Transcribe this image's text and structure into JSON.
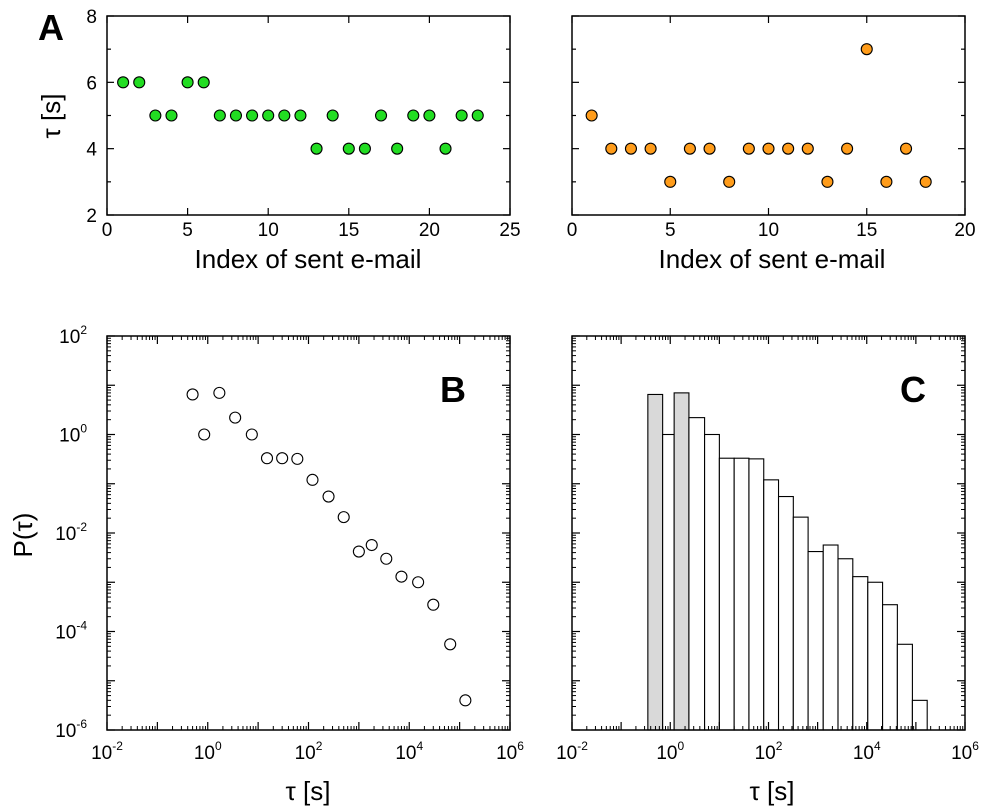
{
  "chart_data": [
    {
      "id": "top-left",
      "type": "scatter",
      "panel_label": "A",
      "xlabel": "Index of sent e-mail",
      "ylabel": "τ [s]",
      "xlim": [
        0,
        25
      ],
      "ylim": [
        2,
        8
      ],
      "xticks": [
        0,
        5,
        10,
        15,
        20,
        25
      ],
      "yticks": [
        2,
        4,
        6,
        8
      ],
      "marker_color": "#22dd22",
      "x": [
        1,
        2,
        3,
        4,
        5,
        6,
        7,
        8,
        9,
        10,
        11,
        12,
        13,
        14,
        15,
        16,
        17,
        18,
        19,
        20,
        21,
        22,
        23
      ],
      "y": [
        6,
        6,
        5,
        5,
        6,
        6,
        5,
        5,
        5,
        5,
        5,
        5,
        4,
        5,
        4,
        4,
        5,
        4,
        5,
        5,
        4,
        5,
        5
      ]
    },
    {
      "id": "top-right",
      "type": "scatter",
      "panel_label": "",
      "xlabel": "Index of sent e-mail",
      "ylabel": "",
      "xlim": [
        0,
        20
      ],
      "ylim": [
        2,
        8
      ],
      "xticks": [
        0,
        5,
        10,
        15,
        20
      ],
      "yticks": [],
      "marker_color": "#ff9c1a",
      "x": [
        1,
        2,
        3,
        4,
        5,
        6,
        7,
        8,
        9,
        10,
        11,
        12,
        13,
        14,
        15,
        16,
        17,
        18
      ],
      "y": [
        5,
        4,
        4,
        4,
        3,
        4,
        4,
        3,
        4,
        4,
        4,
        4,
        3,
        4,
        7,
        3,
        4,
        3
      ]
    },
    {
      "id": "bottom-left",
      "type": "scatter",
      "panel_label": "B",
      "scale": "log-log",
      "xlabel": "τ [s]",
      "ylabel": "P(τ)",
      "xlim": [
        0.01,
        1000000
      ],
      "ylim": [
        1e-06,
        100
      ],
      "xtick_labels": [
        {
          "base": "10",
          "exp": "-2"
        },
        {
          "base": "10",
          "exp": "0"
        },
        {
          "base": "10",
          "exp": "2"
        },
        {
          "base": "10",
          "exp": "4"
        },
        {
          "base": "10",
          "exp": "6"
        }
      ],
      "ytick_labels": [
        {
          "base": "10",
          "exp": "-6"
        },
        {
          "base": "10",
          "exp": "-4"
        },
        {
          "base": "10",
          "exp": "-2"
        },
        {
          "base": "10",
          "exp": "0"
        },
        {
          "base": "10",
          "exp": "2"
        }
      ],
      "marker": "open-circle",
      "x": [
        0.5,
        0.85,
        1.7,
        3.5,
        7.5,
        15,
        30,
        60,
        120,
        250,
        500,
        1000,
        1800,
        3500,
        7000,
        15000,
        30000,
        65000,
        130000
      ],
      "y": [
        6.5,
        1.0,
        7.0,
        2.2,
        1.0,
        0.33,
        0.33,
        0.32,
        0.12,
        0.055,
        0.021,
        0.0042,
        0.0057,
        0.003,
        0.0013,
        0.001,
        0.00035,
        5.5e-05,
        4e-06
      ]
    },
    {
      "id": "bottom-right",
      "type": "bar",
      "panel_label": "C",
      "scale": "log-log",
      "xlabel": "τ [s]",
      "ylabel": "",
      "xlim": [
        0.01,
        1000000
      ],
      "ylim": [
        1e-06,
        100
      ],
      "xtick_labels": [
        {
          "base": "10",
          "exp": "-2"
        },
        {
          "base": "10",
          "exp": "0"
        },
        {
          "base": "10",
          "exp": "2"
        },
        {
          "base": "10",
          "exp": "4"
        },
        {
          "base": "10",
          "exp": "6"
        }
      ],
      "fill_colors": {
        "shaded": "#d9d9d9",
        "open": "#ffffff"
      },
      "bins": [
        {
          "from": 0.35,
          "to": 0.7,
          "value": 6.5,
          "shaded": true
        },
        {
          "from": 0.7,
          "to": 1.2,
          "value": 1.0,
          "shaded": false
        },
        {
          "from": 1.2,
          "to": 2.4,
          "value": 7.0,
          "shaded": true
        },
        {
          "from": 2.4,
          "to": 5,
          "value": 2.2,
          "shaded": false
        },
        {
          "from": 5,
          "to": 10,
          "value": 1.0,
          "shaded": false
        },
        {
          "from": 10,
          "to": 20,
          "value": 0.33,
          "shaded": false
        },
        {
          "from": 20,
          "to": 40,
          "value": 0.33,
          "shaded": false
        },
        {
          "from": 40,
          "to": 80,
          "value": 0.32,
          "shaded": false
        },
        {
          "from": 80,
          "to": 160,
          "value": 0.12,
          "shaded": false
        },
        {
          "from": 160,
          "to": 320,
          "value": 0.055,
          "shaded": false
        },
        {
          "from": 320,
          "to": 640,
          "value": 0.021,
          "shaded": false
        },
        {
          "from": 640,
          "to": 1300,
          "value": 0.0042,
          "shaded": false
        },
        {
          "from": 1300,
          "to": 2600,
          "value": 0.0057,
          "shaded": false
        },
        {
          "from": 2600,
          "to": 5200,
          "value": 0.003,
          "shaded": false
        },
        {
          "from": 5200,
          "to": 10500,
          "value": 0.0013,
          "shaded": false
        },
        {
          "from": 10500,
          "to": 21000,
          "value": 0.001,
          "shaded": false
        },
        {
          "from": 21000,
          "to": 42000,
          "value": 0.00035,
          "shaded": false
        },
        {
          "from": 42000,
          "to": 85000,
          "value": 5.5e-05,
          "shaded": false
        },
        {
          "from": 85000,
          "to": 170000,
          "value": 4e-06,
          "shaded": false
        }
      ]
    }
  ]
}
